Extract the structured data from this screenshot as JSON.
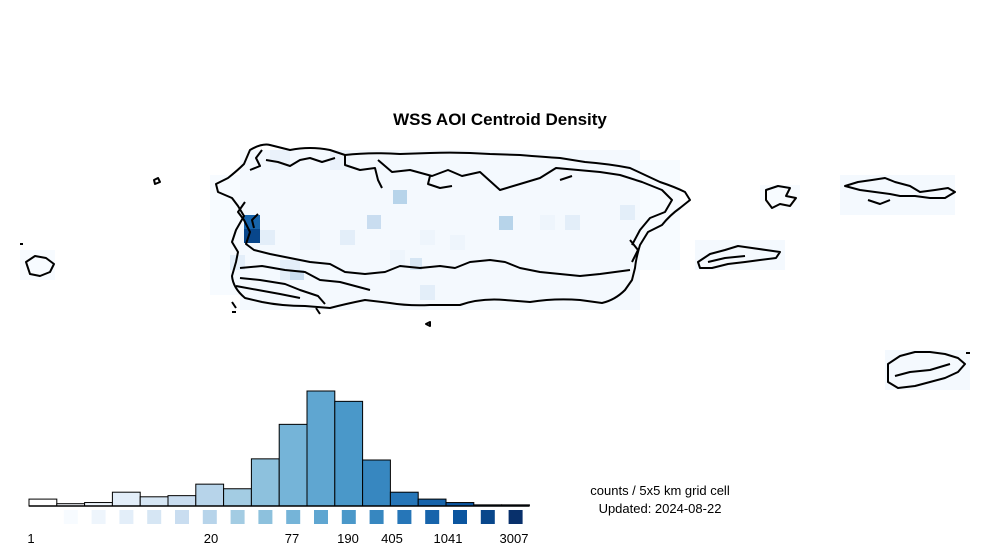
{
  "title": "WSS AOI Centroid Density",
  "legend": {
    "units": "counts / 5x5 km grid cell",
    "updated": "Updated: 2024-08-22",
    "tick_labels": [
      "1",
      "20",
      "77",
      "190",
      "405",
      "1041",
      "3007"
    ],
    "class_colors": [
      "#ffffff",
      "#f7fbff",
      "#eef5fc",
      "#e3eef9",
      "#d6e6f4",
      "#c9ddf0",
      "#b7d4ea",
      "#a3cce3",
      "#8dc1dd",
      "#75b4d8",
      "#5fa6d1",
      "#4a98c9",
      "#3787c0",
      "#2676b8",
      "#1764ab",
      "#0b559f",
      "#08468b",
      "#08306b"
    ],
    "histogram_relative_heights": [
      0.06,
      0.02,
      0.03,
      0.12,
      0.08,
      0.09,
      0.19,
      0.15,
      0.41,
      0.71,
      1.0,
      0.91,
      0.4,
      0.12,
      0.06,
      0.03,
      0.01,
      0.01
    ]
  },
  "map_data": {
    "features": [
      "Puerto Rico",
      "Vieques",
      "Culebra",
      "US Virgin Islands - St. Thomas/St. John",
      "US Virgin Islands - St. Croix",
      "Mona Island",
      "Desecheo Island"
    ],
    "hotspot": "west coast (Mayagüez)"
  }
}
